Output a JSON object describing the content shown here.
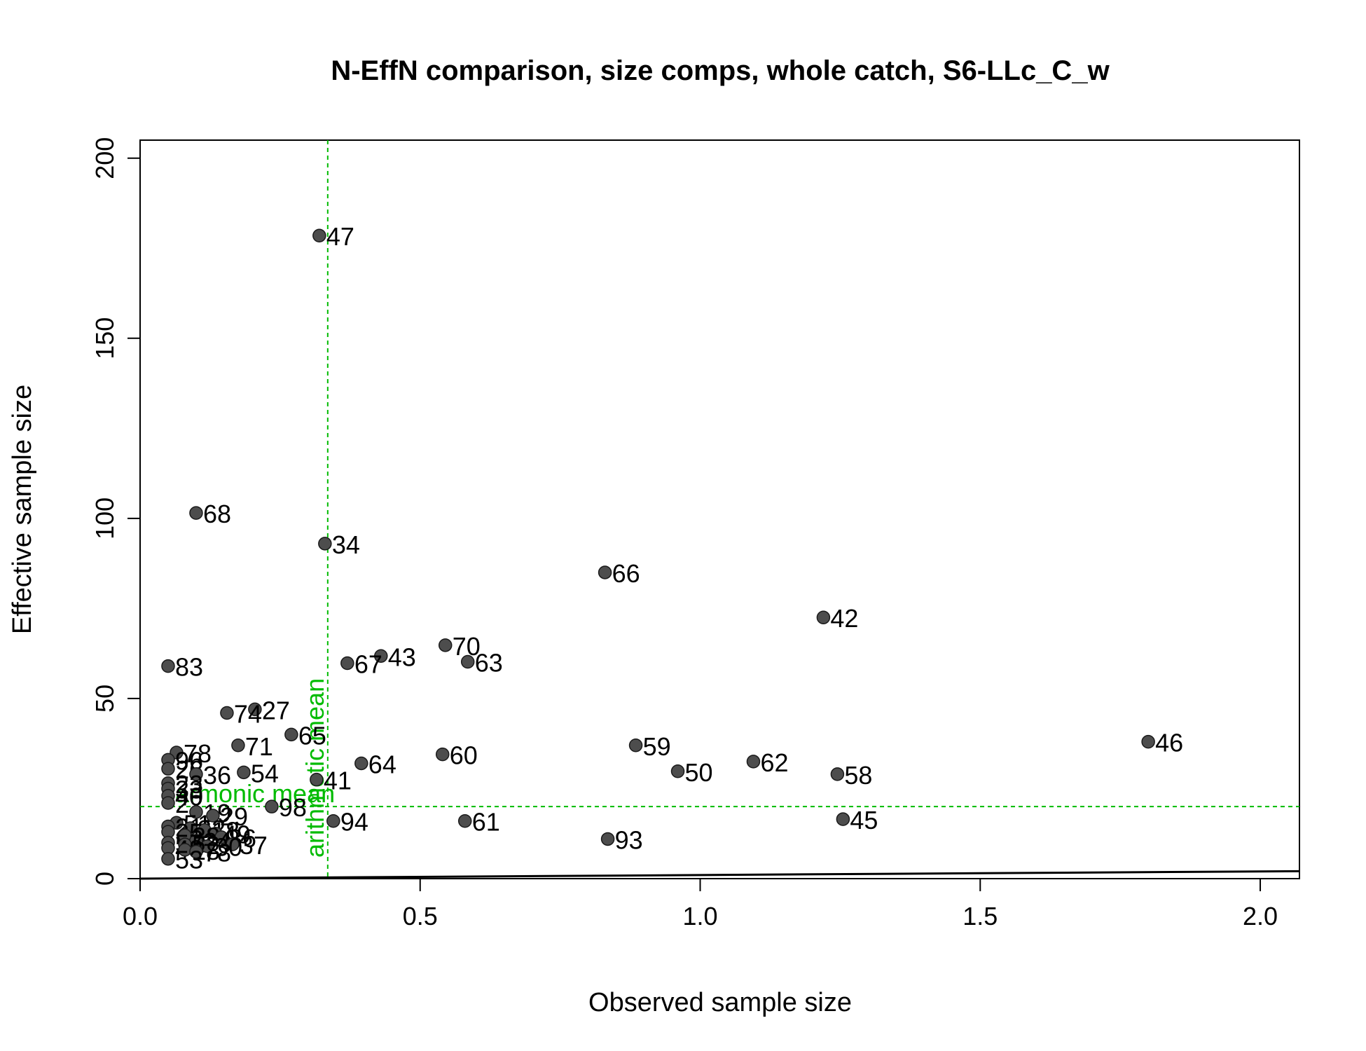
{
  "chart_data": {
    "type": "scatter",
    "title": "N-EffN comparison, size comps, whole catch, S6-LLc_C_w",
    "xlabel": "Observed sample size",
    "ylabel": "Effective sample size",
    "xlim": [
      0,
      2.07
    ],
    "ylim": [
      0,
      205
    ],
    "xticks": [
      0.0,
      0.5,
      1.0,
      1.5,
      2.0
    ],
    "xtick_labels": [
      "0.0",
      "0.5",
      "1.0",
      "1.5",
      "2.0"
    ],
    "yticks": [
      0,
      50,
      100,
      150,
      200
    ],
    "ytick_labels": [
      "0",
      "50",
      "100",
      "150",
      "200"
    ],
    "grid": false,
    "colors": {
      "points": "#4d4d4d",
      "point_edge": "#1a1a1a",
      "mean_lines": "#00bb00"
    },
    "points": [
      {
        "label": "47",
        "x": 0.32,
        "y": 178.5
      },
      {
        "label": "68",
        "x": 0.1,
        "y": 101.5
      },
      {
        "label": "34",
        "x": 0.33,
        "y": 93.0
      },
      {
        "label": "66",
        "x": 0.83,
        "y": 85.0
      },
      {
        "label": "42",
        "x": 1.22,
        "y": 72.5
      },
      {
        "label": "70",
        "x": 0.545,
        "y": 64.8
      },
      {
        "label": "43",
        "x": 0.43,
        "y": 61.8
      },
      {
        "label": "63",
        "x": 0.585,
        "y": 60.2
      },
      {
        "label": "67",
        "x": 0.37,
        "y": 59.8
      },
      {
        "label": "83",
        "x": 0.05,
        "y": 59.0
      },
      {
        "label": "27",
        "x": 0.205,
        "y": 47.0
      },
      {
        "label": "74",
        "x": 0.155,
        "y": 46.0
      },
      {
        "label": "65",
        "x": 0.27,
        "y": 40.0
      },
      {
        "label": "46",
        "x": 1.8,
        "y": 38.0
      },
      {
        "label": "71",
        "x": 0.175,
        "y": 37.0
      },
      {
        "label": "59",
        "x": 0.885,
        "y": 37.0
      },
      {
        "label": "78",
        "x": 0.065,
        "y": 35.0
      },
      {
        "label": "60",
        "x": 0.54,
        "y": 34.5
      },
      {
        "label": "96",
        "x": 0.05,
        "y": 33.0
      },
      {
        "label": "62",
        "x": 1.095,
        "y": 32.5
      },
      {
        "label": "64",
        "x": 0.395,
        "y": 32.0
      },
      {
        "label": "26",
        "x": 0.05,
        "y": 30.5
      },
      {
        "label": "50",
        "x": 0.96,
        "y": 29.8
      },
      {
        "label": "54",
        "x": 0.185,
        "y": 29.5
      },
      {
        "label": "36",
        "x": 0.1,
        "y": 29.0
      },
      {
        "label": "58",
        "x": 1.245,
        "y": 29.0
      },
      {
        "label": "41",
        "x": 0.315,
        "y": 27.5
      },
      {
        "label": "23",
        "x": 0.05,
        "y": 26.5
      },
      {
        "label": "33",
        "x": 0.05,
        "y": 25.0
      },
      {
        "label": "40",
        "x": 0.05,
        "y": 23.0
      },
      {
        "label": "22",
        "x": 0.05,
        "y": 21.0
      },
      {
        "label": "98",
        "x": 0.235,
        "y": 20.0
      },
      {
        "label": "19",
        "x": 0.1,
        "y": 18.5
      },
      {
        "label": "29",
        "x": 0.13,
        "y": 17.5
      },
      {
        "label": "45",
        "x": 1.255,
        "y": 16.5
      },
      {
        "label": "61",
        "x": 0.58,
        "y": 16.0
      },
      {
        "label": "94",
        "x": 0.345,
        "y": 16.0
      },
      {
        "label": "51",
        "x": 0.065,
        "y": 15.5
      },
      {
        "label": "21",
        "x": 0.05,
        "y": 14.5
      },
      {
        "label": "32",
        "x": 0.09,
        "y": 14.0
      },
      {
        "label": "18",
        "x": 0.115,
        "y": 13.5
      },
      {
        "label": "35",
        "x": 0.05,
        "y": 13.0
      },
      {
        "label": "49",
        "x": 0.135,
        "y": 12.5
      },
      {
        "label": "38",
        "x": 0.08,
        "y": 12.0
      },
      {
        "label": "86",
        "x": 0.145,
        "y": 11.5
      },
      {
        "label": "93",
        "x": 0.835,
        "y": 11.0
      },
      {
        "label": "24",
        "x": 0.1,
        "y": 10.5
      },
      {
        "label": "57",
        "x": 0.05,
        "y": 10.0
      },
      {
        "label": "37",
        "x": 0.165,
        "y": 9.5
      },
      {
        "label": "52",
        "x": 0.08,
        "y": 9.5
      },
      {
        "label": "30",
        "x": 0.12,
        "y": 9.0
      },
      {
        "label": "48",
        "x": 0.05,
        "y": 8.5
      },
      {
        "label": "28",
        "x": 0.08,
        "y": 8.0
      },
      {
        "label": "78",
        "x": 0.1,
        "y": 7.5
      },
      {
        "label": "53",
        "x": 0.05,
        "y": 5.5
      }
    ],
    "reference_lines": [
      {
        "orientation": "vertical",
        "value": 0.335,
        "label": "arithmetic mean"
      },
      {
        "orientation": "horizontal",
        "value": 20.0,
        "label": "harmonic mean"
      }
    ],
    "diagonal_line": {
      "x": [
        0,
        2.07
      ],
      "y": [
        0,
        2.07
      ]
    }
  }
}
